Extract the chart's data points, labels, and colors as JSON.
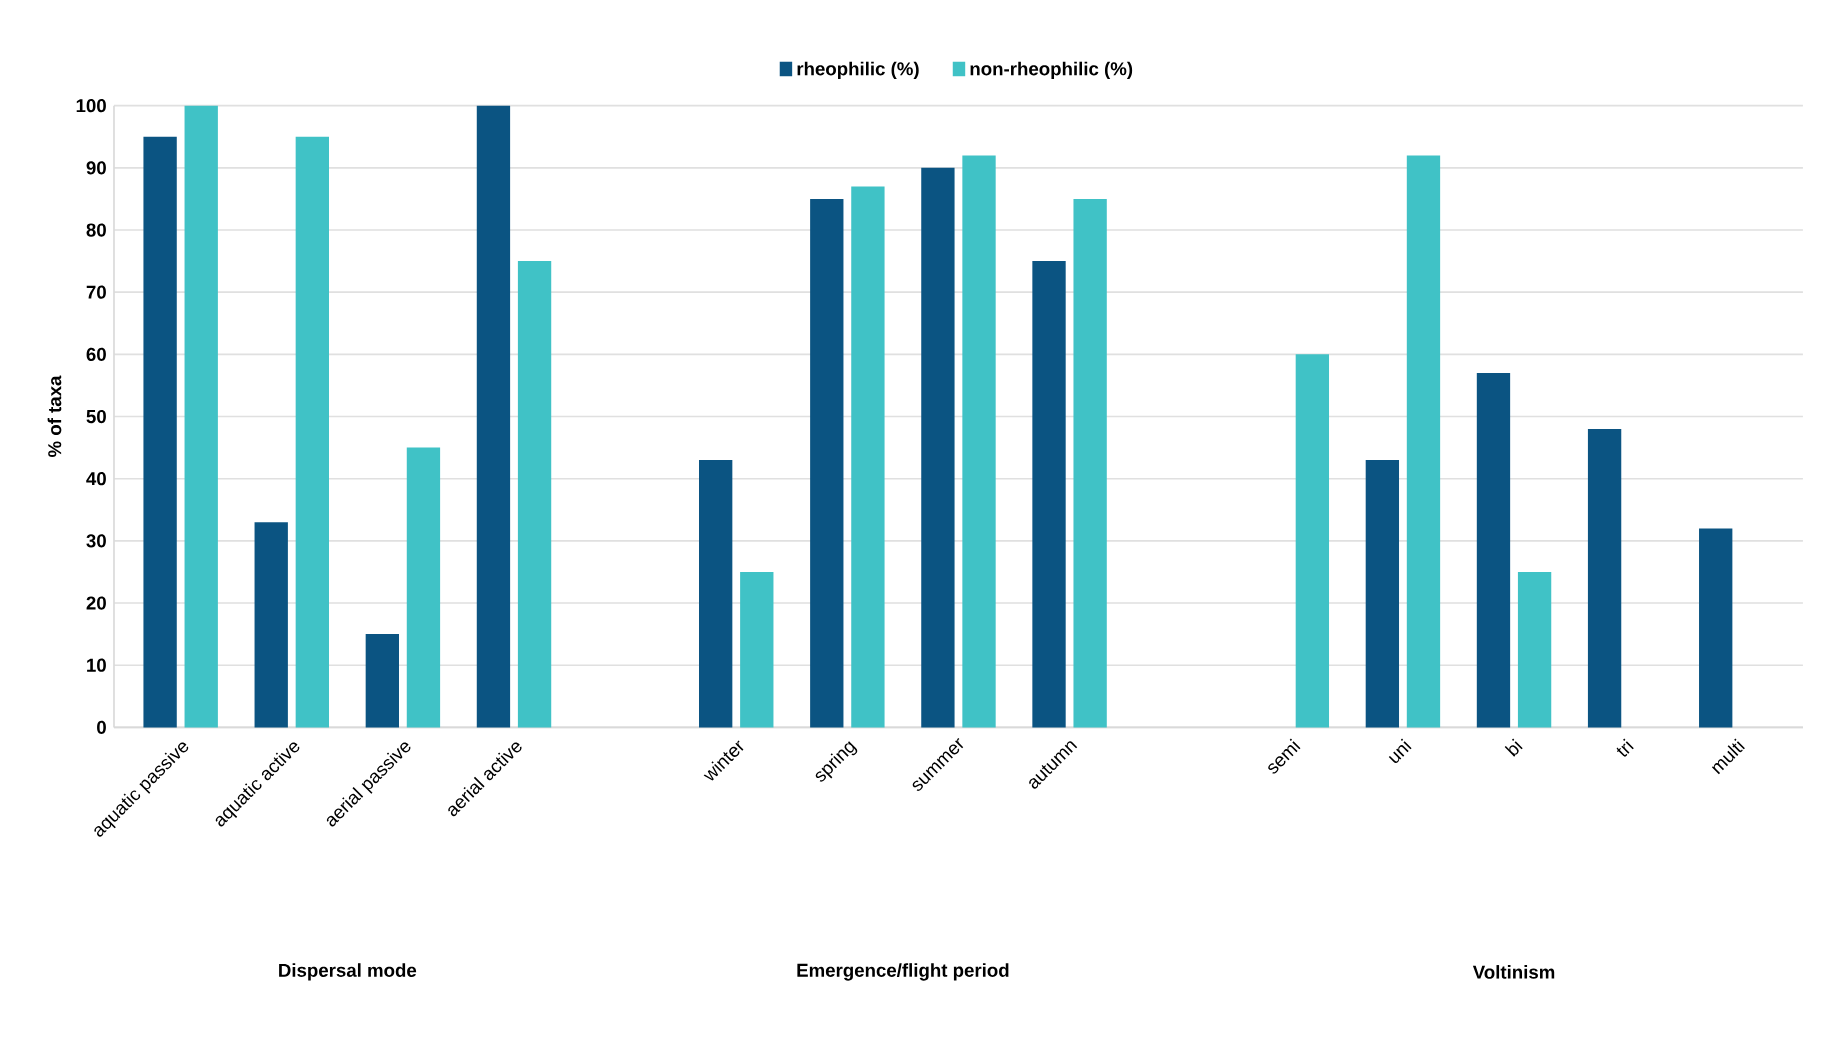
{
  "chart_data": {
    "type": "bar",
    "ylabel": "% of taxa",
    "categories": [
      "aquatic passive",
      "aquatic active",
      "aerial passive",
      "aerial active",
      null,
      "winter",
      "spring",
      "summer",
      "autumn",
      null,
      "semi",
      "uni",
      "bi",
      "tri",
      "multi"
    ],
    "series": [
      {
        "name": "rheophilic (%)",
        "color": "#0b5482",
        "values": [
          95,
          33,
          15,
          100,
          null,
          43,
          85,
          90,
          75,
          null,
          null,
          43,
          57,
          48,
          32
        ]
      },
      {
        "name": "non-rheophilic (%)",
        "color": "#40c2c6",
        "values": [
          100,
          95,
          45,
          75,
          null,
          25,
          87,
          92,
          85,
          null,
          60,
          92,
          25,
          null,
          null
        ]
      }
    ],
    "ylim": [
      0,
      100
    ],
    "yticks": [
      0,
      10,
      20,
      30,
      40,
      50,
      60,
      70,
      80,
      90,
      100
    ],
    "grid": "y",
    "legend": "top",
    "annotations": [
      "Dispersal mode",
      "Emergence/flight period",
      "Voltinism"
    ]
  }
}
